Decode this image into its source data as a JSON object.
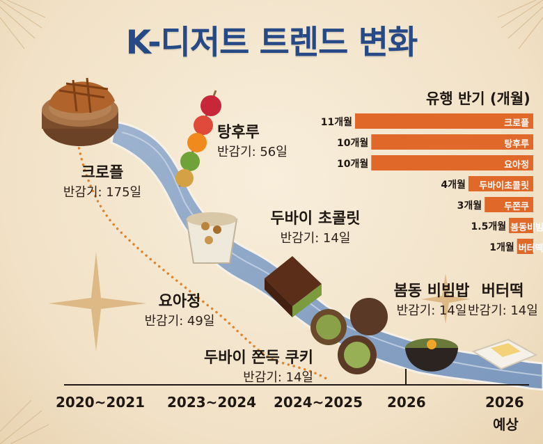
{
  "title": "K-디저트 트렌드 변화",
  "desserts": [
    {
      "name": "크로플",
      "half_life_label": "반감기:",
      "half_life_days": "175일"
    },
    {
      "name": "탕후루",
      "half_life_label": "반감기:",
      "half_life_days": "56일"
    },
    {
      "name": "요아정",
      "half_life_label": "반감기:",
      "half_life_days": "49일"
    },
    {
      "name": "두바이 초콜릿",
      "half_life_label": "반감기:",
      "half_life_days": "14일"
    },
    {
      "name": "두바이 쫀득 쿠키",
      "half_life_label": "반감기:",
      "half_life_days": "14일"
    },
    {
      "name": "봄동 비빔밥",
      "half_life_label": "반감기:",
      "half_life_days": "14일"
    },
    {
      "name": "버터떡",
      "half_life_label": "반감기:",
      "half_life_days": "14일"
    }
  ],
  "timeline": [
    "2020~2021",
    "2023~2024",
    "2024~2025",
    "2026",
    "2026",
    "예상"
  ],
  "chart_data": {
    "type": "bar",
    "orientation": "horizontal",
    "title": "유행 반기 (개월)",
    "categories": [
      "크로플",
      "탕후루",
      "요아정",
      "두바이초콜릿",
      "두쫀쿠",
      "봄동비빔밥",
      "버터떡"
    ],
    "values": [
      11,
      10,
      10,
      4,
      3,
      1.5,
      1
    ],
    "value_labels": [
      "11개월",
      "10개월",
      "10개월",
      "4개월",
      "3개월",
      "1.5개월",
      "1개월"
    ],
    "xlim": [
      0,
      11
    ],
    "grid": false,
    "bar_color": "#e0692a"
  },
  "colors": {
    "title": "#274a86",
    "river": "#8fa9c8",
    "bar": "#e0692a",
    "dots": "#e0842c"
  }
}
